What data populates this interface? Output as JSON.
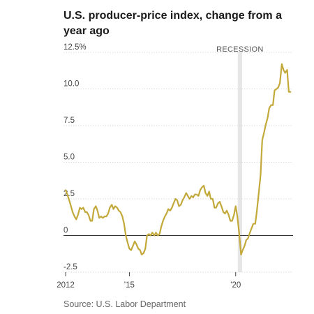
{
  "chart_data": {
    "type": "line",
    "title": "U.S. producer-price index, change from a year ago",
    "source": "Source: U.S. Labor Department",
    "ylim": [
      -2.5,
      12.5
    ],
    "xlim": [
      2011.9,
      2022.7
    ],
    "y_ticks": [
      {
        "value": 12.5,
        "label": "12.5%"
      },
      {
        "value": 10.0,
        "label": "10.0"
      },
      {
        "value": 7.5,
        "label": "7.5"
      },
      {
        "value": 5.0,
        "label": "5.0"
      },
      {
        "value": 2.5,
        "label": "2.5"
      },
      {
        "value": 0,
        "label": "0"
      },
      {
        "value": -2.5,
        "label": "-2.5"
      }
    ],
    "x_ticks": [
      {
        "value": 2012,
        "label": "2012"
      },
      {
        "value": 2015,
        "label": "'15"
      },
      {
        "value": 2020,
        "label": "'20"
      }
    ],
    "recession": {
      "label": "RECESSION",
      "start": 2020.1,
      "end": 2020.3
    },
    "grid": "horizontal",
    "line_color": "#c2a93a",
    "series": [
      {
        "x": [
          2012.0,
          2012.08,
          2012.17,
          2012.25,
          2012.33,
          2012.42,
          2012.5,
          2012.58,
          2012.67,
          2012.75,
          2012.83,
          2012.92,
          2013.0,
          2013.08,
          2013.17,
          2013.25,
          2013.33,
          2013.42,
          2013.5,
          2013.58,
          2013.67,
          2013.75,
          2013.83,
          2013.92,
          2014.0,
          2014.08,
          2014.17,
          2014.25,
          2014.33,
          2014.42,
          2014.5,
          2014.58,
          2014.67,
          2014.75,
          2014.83,
          2014.92,
          2015.0,
          2015.08,
          2015.17,
          2015.25,
          2015.33,
          2015.42,
          2015.5,
          2015.58,
          2015.67,
          2015.75,
          2015.83,
          2015.92,
          2016.0,
          2016.08,
          2016.17,
          2016.25,
          2016.33,
          2016.42,
          2016.5,
          2016.58,
          2016.67,
          2016.75,
          2016.83,
          2016.92,
          2017.0,
          2017.08,
          2017.17,
          2017.25,
          2017.33,
          2017.42,
          2017.5,
          2017.58,
          2017.67,
          2017.75,
          2017.83,
          2017.92,
          2018.0,
          2018.08,
          2018.17,
          2018.25,
          2018.33,
          2018.42,
          2018.5,
          2018.58,
          2018.67,
          2018.75,
          2018.83,
          2018.92,
          2019.0,
          2019.08,
          2019.17,
          2019.25,
          2019.33,
          2019.42,
          2019.5,
          2019.58,
          2019.67,
          2019.75,
          2019.83,
          2019.92,
          2020.0,
          2020.08,
          2020.17,
          2020.25,
          2020.33,
          2020.42,
          2020.5,
          2020.58,
          2020.67,
          2020.75,
          2020.83,
          2020.92,
          2021.0,
          2021.08,
          2021.17,
          2021.25,
          2021.33,
          2021.42,
          2021.5,
          2021.58,
          2021.67,
          2021.75,
          2021.83,
          2021.92,
          2022.0,
          2022.08,
          2022.17,
          2022.25,
          2022.33,
          2022.42,
          2022.5,
          2022.58
        ],
        "values": [
          3.1,
          2.8,
          2.4,
          2.0,
          1.6,
          1.3,
          1.1,
          1.4,
          1.9,
          1.8,
          1.9,
          1.6,
          1.6,
          1.4,
          1.0,
          1.0,
          1.8,
          2.0,
          1.7,
          1.2,
          1.3,
          1.2,
          1.3,
          1.3,
          1.5,
          1.9,
          2.1,
          1.8,
          2.0,
          1.9,
          1.7,
          1.6,
          1.3,
          0.8,
          0.0,
          -0.5,
          -0.9,
          -1.0,
          -0.7,
          -0.4,
          -0.6,
          -0.9,
          -1.0,
          -1.3,
          -1.2,
          -0.9,
          0.0,
          0.1,
          0.0,
          0.2,
          0.0,
          0.2,
          0.0,
          0.1,
          0.6,
          1.0,
          1.3,
          1.5,
          1.8,
          1.7,
          1.9,
          2.2,
          2.5,
          2.4,
          2.0,
          2.1,
          2.4,
          2.6,
          2.9,
          2.7,
          2.5,
          2.7,
          2.6,
          2.8,
          2.8,
          2.7,
          3.1,
          3.3,
          3.4,
          2.9,
          2.7,
          3.0,
          2.5,
          2.5,
          1.9,
          1.9,
          2.2,
          2.3,
          2.0,
          1.6,
          1.5,
          1.7,
          1.4,
          1.0,
          1.0,
          1.4,
          2.0,
          1.3,
          0.1,
          -1.3,
          -1.0,
          -0.7,
          -0.3,
          -0.2,
          0.2,
          0.5,
          0.8,
          0.8,
          1.7,
          2.8,
          4.1,
          6.5,
          7.0,
          7.6,
          8.0,
          8.7,
          8.9,
          8.9,
          9.9,
          10.0,
          10.1,
          10.4,
          11.7,
          11.3,
          11.1,
          11.3,
          9.8,
          9.8
        ]
      }
    ]
  }
}
